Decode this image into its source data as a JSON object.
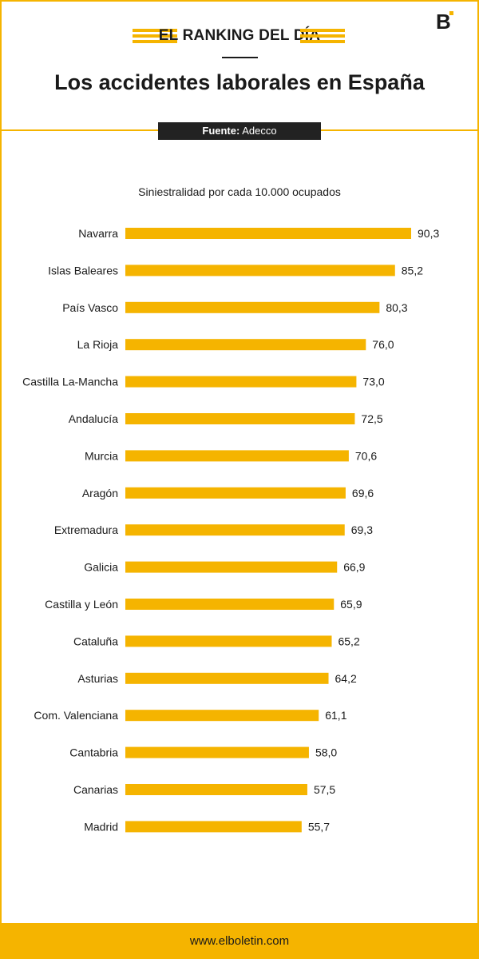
{
  "header": {
    "ranking_label": "EL RANKING DEL DÍA",
    "title": "Los accidentes laborales en España",
    "source_label": "Fuente:",
    "source_value": "Adecco",
    "logo_letter": "B"
  },
  "colors": {
    "accent": "#f5b400",
    "dark": "#222222"
  },
  "chart_data": {
    "type": "bar",
    "orientation": "horizontal",
    "title": "Siniestralidad por cada 10.000 ocupados",
    "categories": [
      "Navarra",
      "Islas Baleares",
      "País Vasco",
      "La Rioja",
      "Castilla La-Mancha",
      "Andalucía",
      "Murcia",
      "Aragón",
      "Extremadura",
      "Galicia",
      "Castilla y León",
      "Cataluña",
      "Asturias",
      "Com. Valenciana",
      "Cantabria",
      "Canarias",
      "Madrid"
    ],
    "values": [
      90.3,
      85.2,
      80.3,
      76.0,
      73.0,
      72.5,
      70.6,
      69.6,
      69.3,
      66.9,
      65.9,
      65.2,
      64.2,
      61.1,
      58.0,
      57.5,
      55.7
    ],
    "value_labels": [
      "90,3",
      "85,2",
      "80,3",
      "76,0",
      "73,0",
      "72,5",
      "70,6",
      "69,6",
      "69,3",
      "66,9",
      "65,9",
      "65,2",
      "64,2",
      "61,1",
      "58,0",
      "57,5",
      "55,7"
    ],
    "xlim": [
      0,
      90.3
    ],
    "grid": false,
    "legend": "none"
  },
  "footer": {
    "url": "www.elboletin.com"
  }
}
